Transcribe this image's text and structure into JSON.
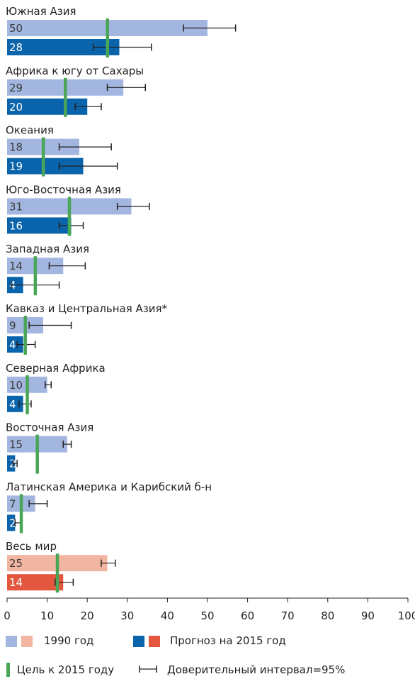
{
  "chart_data": {
    "type": "bar",
    "orientation": "horizontal",
    "xlim": [
      0,
      100
    ],
    "x_ticks": [
      "0",
      "10",
      "20",
      "30",
      "40",
      "50",
      "60",
      "70",
      "80",
      "90",
      "100"
    ],
    "categories": [
      "Южная Азия",
      "Африка к югу от Сахары",
      "Океания",
      "Юго-Восточная Азия",
      "Западная Азия",
      "Кавказ и Центральная Азия*",
      "Северная Африка",
      "Восточная Азия",
      "Латинская Америка и Карибский б-н",
      "Весь мир"
    ],
    "series": [
      {
        "name": "1990 год",
        "values": [
          50,
          29,
          18,
          31,
          14,
          9,
          10,
          15,
          7,
          25
        ],
        "ci_low": [
          44,
          25,
          13,
          27.5,
          10.5,
          5.5,
          9.5,
          14,
          5.5,
          23.5
        ],
        "ci_high": [
          57,
          34.5,
          26,
          35.5,
          19.5,
          16,
          11,
          16,
          10,
          27
        ]
      },
      {
        "name": "Прогноз на 2015 год",
        "values": [
          28,
          20,
          19,
          16,
          4,
          4,
          4,
          2,
          2,
          14
        ],
        "ci_low": [
          21.5,
          17,
          13,
          13,
          1,
          2.5,
          3,
          1.5,
          2,
          12
        ],
        "ci_high": [
          36,
          23.5,
          27.5,
          19,
          13,
          7,
          6,
          2.5,
          3.5,
          16.5
        ]
      }
    ],
    "target_2015": [
      25,
      14.5,
      9,
      15.5,
      7,
      4.5,
      5,
      7.5,
      3.5,
      12.5
    ],
    "colors": {
      "regions_1990": "#a3b6e0",
      "regions_2015": "#0a64ab",
      "world_1990": "#f1b5a1",
      "world_2015": "#e3573f",
      "target": "#4aa657",
      "ci": "#231f20"
    }
  },
  "legend": {
    "label_1990": "1990 год",
    "label_2015": "Прогноз на 2015 год",
    "label_target": "Цель к 2015 году",
    "label_ci": "Доверительный интервал=95%"
  }
}
